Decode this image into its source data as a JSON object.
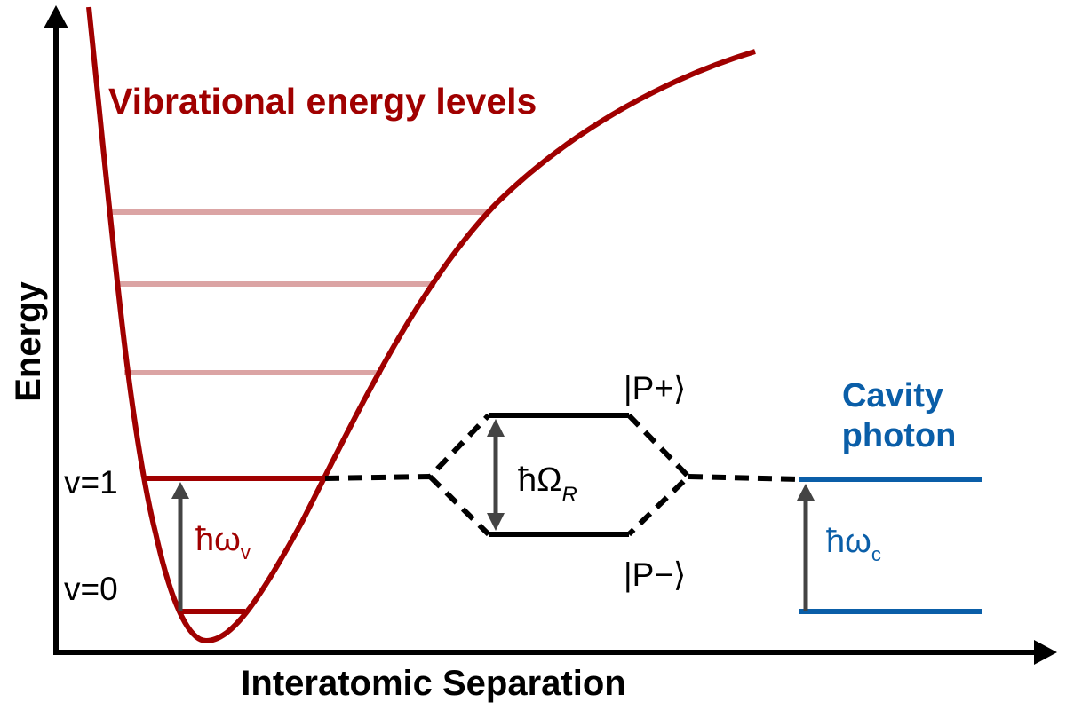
{
  "title": "Vibrational energy levels",
  "y_axis_label": "Energy",
  "x_axis_label": "Interatomic Separation",
  "levels": {
    "v0": "v=0",
    "v1": "v=1"
  },
  "vibrational_quantum": {
    "main": "ħω",
    "sub": "v"
  },
  "rabi_splitting": {
    "main": "ħΩ",
    "sub": "R"
  },
  "polaritons": {
    "upper": "|P+⟩",
    "lower": "|P−⟩"
  },
  "cavity": {
    "line1": "Cavity",
    "line2": "photon"
  },
  "cavity_quantum": {
    "main": "ħω",
    "sub": "c"
  },
  "colors": {
    "vibrational": "#a00000",
    "vibrational_light": "#dba4a4",
    "cavity": "#0a5ea8",
    "polariton": "#000000",
    "arrow": "#444444"
  }
}
